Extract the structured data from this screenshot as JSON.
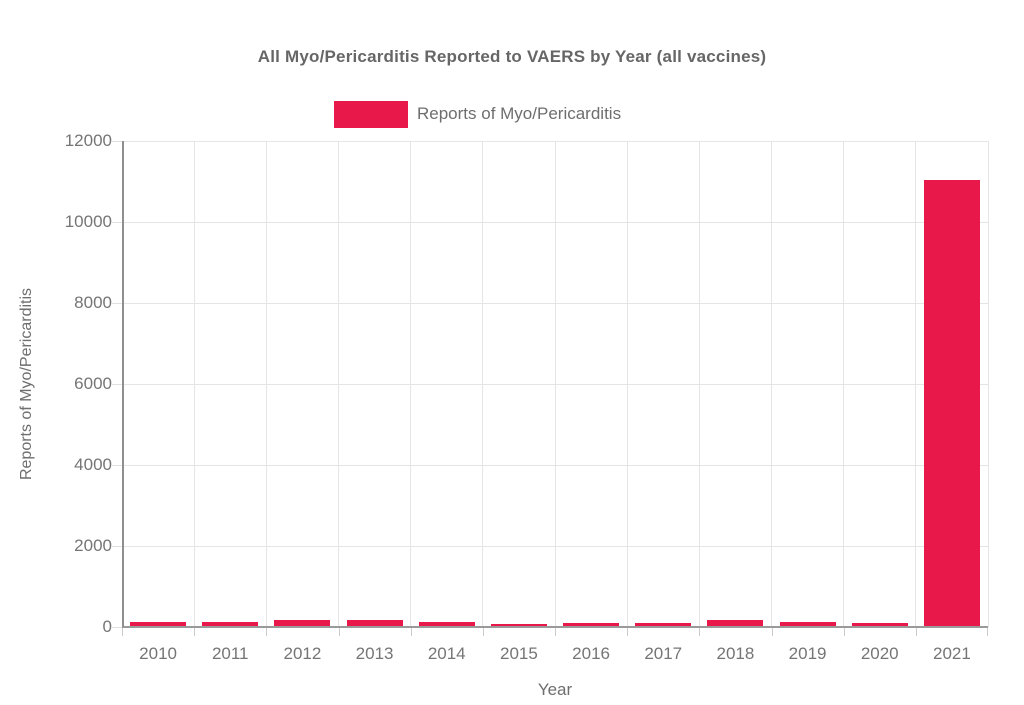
{
  "title": "All Myo/Pericarditis Reported to VAERS by Year (all vaccines)",
  "legend": {
    "label": "Reports of Myo/Pericarditis"
  },
  "colors": {
    "bar": "#E8194A",
    "title_text": "#666666",
    "axis_text": "#757575",
    "gridline": "#e5e5e5",
    "axis_line": "#8f8f8f"
  },
  "chart_data": {
    "type": "bar",
    "title": "All Myo/Pericarditis Reported to VAERS by Year (all vaccines)",
    "series_name": "Reports of Myo/Pericarditis",
    "categories": [
      "2010",
      "2011",
      "2012",
      "2013",
      "2014",
      "2015",
      "2016",
      "2017",
      "2018",
      "2019",
      "2020",
      "2021"
    ],
    "values": [
      95,
      95,
      150,
      160,
      100,
      55,
      65,
      80,
      160,
      100,
      65,
      11000
    ],
    "xlabel": "Year",
    "ylabel": "Reports of Myo/Pericarditis",
    "ylim": [
      0,
      12000
    ],
    "yticks": [
      0,
      2000,
      4000,
      6000,
      8000,
      10000,
      12000
    ],
    "grid": true,
    "legend_position": "top-center"
  }
}
